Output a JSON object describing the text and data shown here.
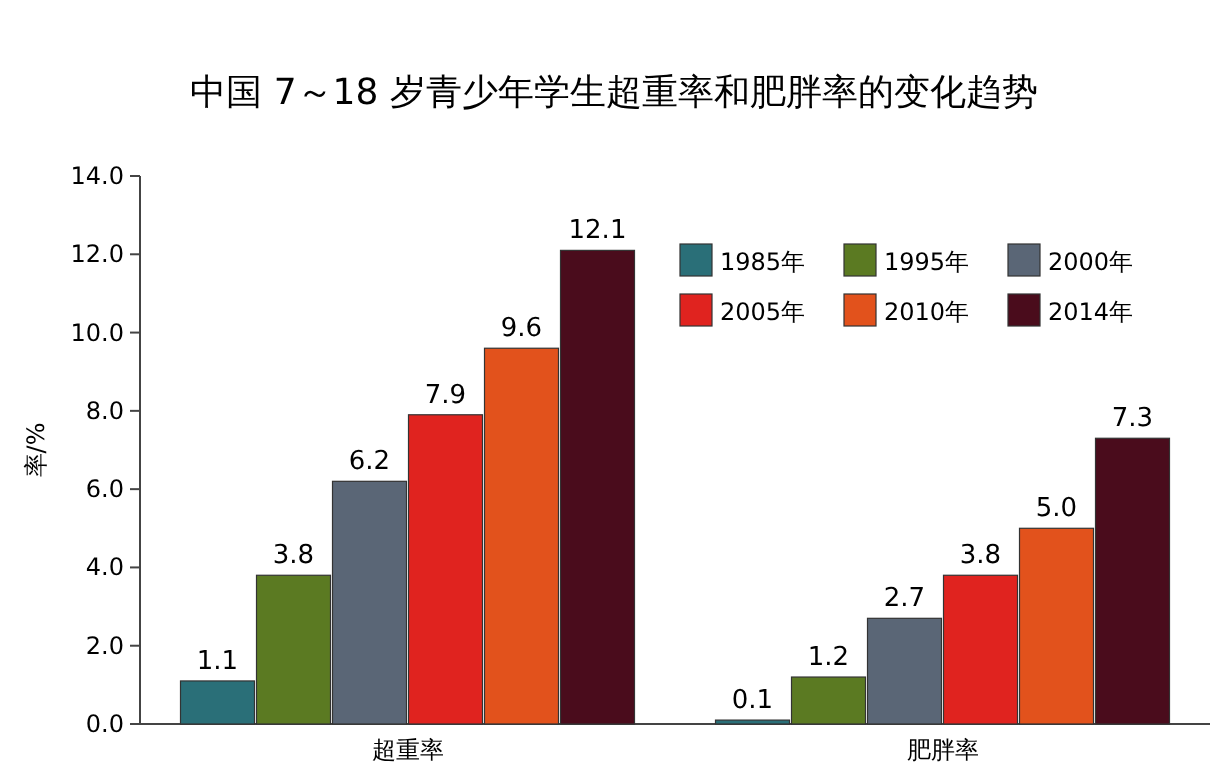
{
  "chart_data": {
    "type": "bar",
    "title": "中国 7～18 岁青少年学生超重率和肥胖率的变化趋势",
    "ylabel": "率/%",
    "categories": [
      "超重率",
      "肥胖率"
    ],
    "series": [
      {
        "name": "1985年",
        "color": "#2a6f78",
        "values": [
          1.1,
          0.1
        ],
        "value_labels": [
          "1.1",
          "0.1"
        ]
      },
      {
        "name": "1995年",
        "color": "#5b7a22",
        "values": [
          3.8,
          1.2
        ],
        "value_labels": [
          "3.8",
          "1.2"
        ]
      },
      {
        "name": "2000年",
        "color": "#5a6676",
        "values": [
          6.2,
          2.7
        ],
        "value_labels": [
          "6.2",
          "2.7"
        ]
      },
      {
        "name": "2005年",
        "color": "#e0231f",
        "values": [
          7.9,
          3.8
        ],
        "value_labels": [
          "7.9",
          "3.8"
        ]
      },
      {
        "name": "2010年",
        "color": "#e2521c",
        "values": [
          9.6,
          5.0
        ],
        "value_labels": [
          "9.6",
          "5.0"
        ]
      },
      {
        "name": "2014年",
        "color": "#4a0c1c",
        "values": [
          12.1,
          7.3
        ],
        "value_labels": [
          "12.1",
          "7.3"
        ]
      }
    ],
    "ylim": [
      0,
      14
    ],
    "yticks": [
      {
        "value": 0,
        "label": "0.0"
      },
      {
        "value": 2,
        "label": "2.0"
      },
      {
        "value": 4,
        "label": "4.0"
      },
      {
        "value": 6,
        "label": "6.0"
      },
      {
        "value": 8,
        "label": "8.0"
      },
      {
        "value": 10,
        "label": "10.0"
      },
      {
        "value": 12,
        "label": "12.0"
      },
      {
        "value": 14,
        "label": "14.0"
      }
    ],
    "legend": "top right",
    "grid": false
  }
}
